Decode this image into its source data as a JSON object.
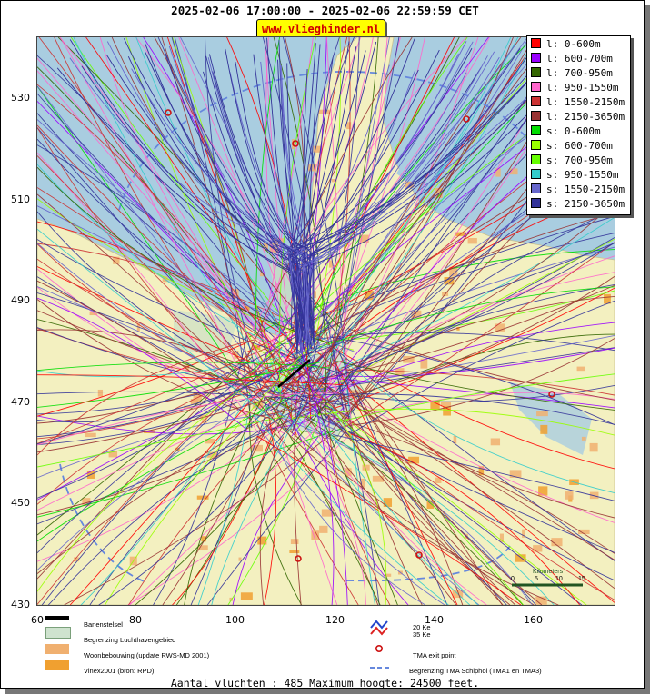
{
  "header": {
    "title": "2025-02-06 17:00:00 - 2025-02-06 22:59:59 CET",
    "site": "www.vlieghinder.nl"
  },
  "axes": {
    "x_ticks": [
      "60",
      "80",
      "100",
      "120",
      "140",
      "160"
    ],
    "y_ticks": [
      "530",
      "510",
      "490",
      "470",
      "450",
      "430"
    ]
  },
  "legend": [
    {
      "label": "l: 0-600m",
      "color": "#ff0000"
    },
    {
      "label": "l: 600-700m",
      "color": "#9900ff"
    },
    {
      "label": "l: 700-950m",
      "color": "#336600"
    },
    {
      "label": "l: 950-1550m",
      "color": "#ff66cc"
    },
    {
      "label": "l: 1550-2150m",
      "color": "#cc3333"
    },
    {
      "label": "l: 2150-3650m",
      "color": "#993333"
    },
    {
      "label": "s: 0-600m",
      "color": "#00dd00"
    },
    {
      "label": "s: 600-700m",
      "color": "#99ff00"
    },
    {
      "label": "s: 700-950m",
      "color": "#66ff00"
    },
    {
      "label": "s: 950-1550m",
      "color": "#33cccc"
    },
    {
      "label": "s: 1550-2150m",
      "color": "#6666cc"
    },
    {
      "label": "s: 2150-3650m",
      "color": "#333399"
    }
  ],
  "scale": {
    "title": "Kilometers",
    "ticks": [
      "0",
      "5",
      "10",
      "15"
    ]
  },
  "bottom_legend": {
    "runway": "Banenstelsel",
    "airport": "Begrenzing Luchthavengebied",
    "housing": "Woonbebouwing (update RWS-MD 2001)",
    "vinex": "Vinex2001 (bron: RPD)",
    "ke20": "20 Ke",
    "ke35": "35 Ke",
    "tma_exit": "TMA exit point",
    "tma_border": "Begrenzing TMA Schiphol  (TMA1 en TMA3)"
  },
  "footer": "Aantal vluchten : 485 Maximum hoogte: 24500 feet."
}
